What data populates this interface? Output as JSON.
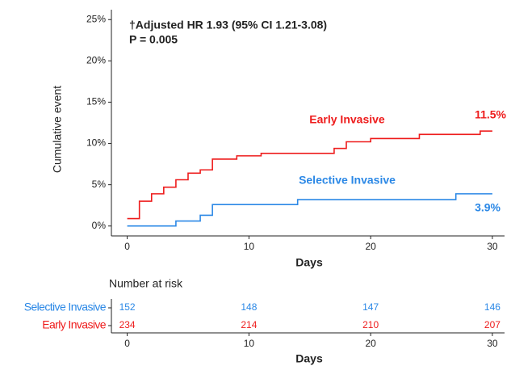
{
  "chart_data": [
    {
      "type": "line",
      "line_style": "step",
      "annotations": [
        "†Adjusted HR 1.93 (95% CI 1.21-3.08)",
        "P = 0.005"
      ],
      "x_label": "Days",
      "y_label": "Cumulative event",
      "xlim": [
        -1.3,
        31
      ],
      "xticks": [
        0,
        10,
        20,
        30
      ],
      "ylim": [
        -1.2,
        26.2
      ],
      "yticks": [
        {
          "value": 0,
          "label": "0%"
        },
        {
          "value": 5,
          "label": "5%"
        },
        {
          "value": 10,
          "label": "10%"
        },
        {
          "value": 15,
          "label": "15%"
        },
        {
          "value": 20,
          "label": "20%"
        },
        {
          "value": 25,
          "label": "25%"
        }
      ],
      "series": [
        {
          "name": "Early Invasive",
          "color": "#ee1c1c",
          "x": [
            0,
            1,
            2,
            3,
            4,
            5,
            6,
            7,
            9,
            11,
            14,
            17,
            18,
            20,
            24,
            29,
            30
          ],
          "values": [
            0.9,
            3.0,
            3.9,
            4.7,
            5.6,
            6.4,
            6.8,
            8.1,
            8.5,
            8.8,
            8.8,
            9.4,
            10.2,
            10.6,
            11.1,
            11.5,
            11.5
          ],
          "value_labels": [
            null,
            null,
            null,
            null,
            null,
            null,
            null,
            null,
            null,
            null,
            null,
            null,
            null,
            null,
            null,
            null,
            "11.5%"
          ]
        },
        {
          "name": "Selective Invasive",
          "color": "#2b88e6",
          "x": [
            0,
            4,
            6,
            7,
            14,
            27,
            30
          ],
          "values": [
            0,
            0.6,
            1.3,
            2.6,
            3.2,
            3.9,
            3.9
          ],
          "value_labels": [
            null,
            null,
            null,
            null,
            null,
            null,
            "3.9%"
          ]
        }
      ]
    },
    {
      "type": "risk_table",
      "title": "Number at risk",
      "x_label": "Days",
      "x": [
        0,
        10,
        20,
        30
      ],
      "xlim": [
        -1.3,
        31
      ],
      "xticks": [
        0,
        10,
        20,
        30
      ],
      "rows": [
        {
          "name": "Selective Invasive",
          "color": "#2b88e6",
          "values": [
            152,
            148,
            147,
            146
          ]
        },
        {
          "name": "Early Invasive",
          "color": "#ee1c1c",
          "values": [
            234,
            214,
            210,
            207
          ]
        }
      ]
    }
  ]
}
